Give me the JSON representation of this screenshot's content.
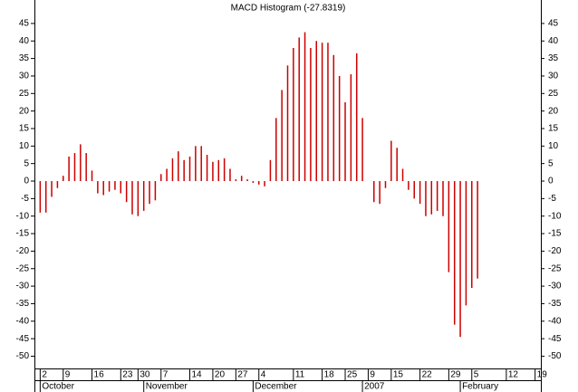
{
  "chart_data": {
    "type": "bar",
    "title": "MACD Histogram (-27.8319)",
    "color": "#cc0000",
    "x": [
      0,
      1,
      2,
      3,
      4,
      5,
      6,
      7,
      8,
      9,
      10,
      11,
      12,
      13,
      14,
      15,
      16,
      17,
      18,
      19,
      20,
      21,
      22,
      23,
      24,
      25,
      26,
      27,
      28,
      29,
      30,
      31,
      32,
      33,
      34,
      35,
      36,
      37,
      38,
      39,
      40,
      41,
      42,
      43,
      44,
      45,
      46,
      47,
      48,
      49,
      50,
      51,
      52,
      53,
      54,
      55,
      56,
      58,
      59,
      60,
      61,
      62,
      63,
      64,
      65,
      66,
      67,
      68,
      69,
      70,
      71,
      72,
      73,
      74,
      75,
      76
    ],
    "values": [
      -9,
      -9,
      -4.5,
      -2,
      1.5,
      7,
      8,
      10.5,
      8,
      3,
      -3.5,
      -4,
      -3,
      -2.5,
      -3.5,
      -6,
      -9.5,
      -10,
      -8.5,
      -6.5,
      -5.5,
      2,
      3.5,
      6.5,
      8.5,
      6,
      7,
      10,
      10,
      7.5,
      5.5,
      6,
      6.5,
      3.5,
      0.5,
      1.5,
      0.5,
      -0.5,
      -1,
      -1.5,
      6,
      18,
      26,
      33,
      38,
      41,
      42.5,
      38,
      40,
      39.5,
      39.5,
      36,
      30,
      22.5,
      30.5,
      36.5,
      18,
      -6,
      -6.5,
      -2,
      11.5,
      9.5,
      3.5,
      -2.5,
      -5,
      -6.5,
      -10,
      -9.5,
      -8.5,
      -10,
      -26,
      -41,
      -44.5,
      -35.5,
      -30.5,
      -27.8319
    ],
    "xlim": [
      -1,
      87
    ],
    "xticks": [
      {
        "value": 0,
        "label": "2"
      },
      {
        "value": 4,
        "label": "9"
      },
      {
        "value": 9,
        "label": "16"
      },
      {
        "value": 14,
        "label": "23"
      },
      {
        "value": 17,
        "label": "30"
      },
      {
        "value": 21,
        "label": "7"
      },
      {
        "value": 26,
        "label": "14"
      },
      {
        "value": 30,
        "label": "20"
      },
      {
        "value": 34,
        "label": "27"
      },
      {
        "value": 38,
        "label": "4"
      },
      {
        "value": 44,
        "label": "11"
      },
      {
        "value": 49,
        "label": "18"
      },
      {
        "value": 53,
        "label": "25"
      },
      {
        "value": 57,
        "label": "9"
      },
      {
        "value": 61,
        "label": "15"
      },
      {
        "value": 66,
        "label": "22"
      },
      {
        "value": 71,
        "label": "29"
      },
      {
        "value": 75,
        "label": "5"
      },
      {
        "value": 81,
        "label": "12"
      },
      {
        "value": 86,
        "label": "19"
      }
    ],
    "month_ticks": [
      {
        "value": 0,
        "label": "October"
      },
      {
        "value": 18,
        "label": "November"
      },
      {
        "value": 37,
        "label": "December"
      },
      {
        "value": 56,
        "label": "2007"
      },
      {
        "value": 73,
        "label": "February"
      }
    ],
    "ylim": [
      -53.5,
      51.7
    ],
    "yticks": [
      -50,
      -45,
      -40,
      -35,
      -30,
      -25,
      -20,
      -15,
      -10,
      -5,
      0,
      5,
      10,
      15,
      20,
      25,
      30,
      35,
      40,
      45
    ]
  }
}
